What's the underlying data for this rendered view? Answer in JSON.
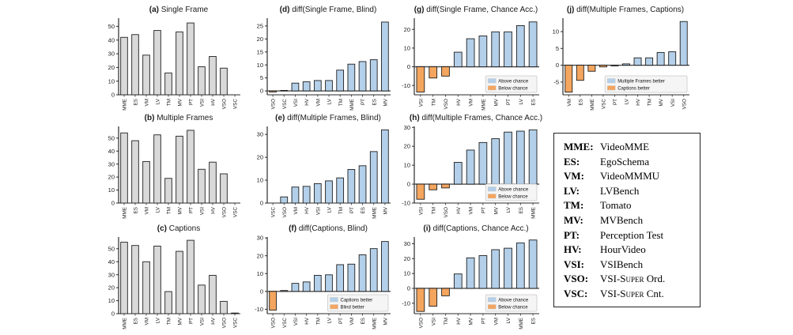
{
  "figure_name": "benchmark-diff-bar-charts",
  "colors": {
    "gray": "#d9d9d9",
    "blue": "#b3cfe9",
    "orange": "#f4a55e",
    "edge": "#1f1f1f",
    "spine": "#2a2a2a",
    "zero_line": "#4d4d4d",
    "legend_bg": "#f5f5f5",
    "legend_border": "#c9c9c9"
  },
  "chart_data": [
    {
      "id": "a",
      "type": "bar",
      "label": "(a)",
      "title": "Single Frame",
      "mono": true,
      "categories": [
        "MME",
        "ES",
        "VM",
        "LV",
        "TM",
        "MV",
        "PT",
        "VSI",
        "HV",
        "VSO",
        "VSC"
      ],
      "values": [
        42,
        44,
        29,
        47,
        16,
        46,
        52.5,
        20.5,
        28,
        19.5,
        0
      ],
      "yticks": [
        0,
        10,
        20,
        30,
        40,
        50
      ],
      "ylim": [
        0,
        56
      ],
      "legend": null
    },
    {
      "id": "b",
      "type": "bar",
      "label": "(b)",
      "title": "Multiple Frames",
      "mono": true,
      "categories": [
        "MME",
        "ES",
        "VM",
        "LV",
        "TM",
        "MV",
        "PT",
        "VSI",
        "HV",
        "VSO",
        "VSC"
      ],
      "values": [
        54,
        48,
        32,
        52.5,
        19,
        51.5,
        56,
        26,
        31.5,
        22.5,
        0
      ],
      "yticks": [
        0,
        10,
        20,
        30,
        40,
        50
      ],
      "ylim": [
        0,
        59
      ],
      "legend": null
    },
    {
      "id": "c",
      "type": "bar",
      "label": "(c)",
      "title": "Captions",
      "mono": true,
      "categories": [
        "MME",
        "ES",
        "VM",
        "LV",
        "TM",
        "MV",
        "PT",
        "VSI",
        "HV",
        "VSO",
        "VSC"
      ],
      "values": [
        55,
        52.5,
        40,
        52,
        17,
        48,
        56.5,
        22,
        29.5,
        9.5,
        0.5
      ],
      "yticks": [
        0,
        10,
        20,
        30,
        40,
        50
      ],
      "ylim": [
        0,
        59
      ],
      "legend": null
    },
    {
      "id": "d",
      "type": "bar",
      "label": "(d)",
      "title": "diff(Single Frame, Blind)",
      "mono": false,
      "categories": [
        "VSO",
        "VSC",
        "VSI",
        "HV",
        "VM",
        "LV",
        "TM",
        "MME",
        "PT",
        "ES",
        "MV"
      ],
      "values": [
        -0.4,
        0.2,
        3,
        3.5,
        4,
        4,
        8,
        10.3,
        11.3,
        12,
        26.5
      ],
      "yticks": [
        0,
        5,
        10,
        15,
        20,
        25
      ],
      "ylim": [
        -1.5,
        28
      ],
      "legend": null
    },
    {
      "id": "e",
      "type": "bar",
      "label": "(e)",
      "title": "diff(Multiple Frames, Blind)",
      "mono": false,
      "categories": [
        "VSC",
        "VSO",
        "VM",
        "HV",
        "VSI",
        "LV",
        "TM",
        "PT",
        "ES",
        "MME",
        "MV"
      ],
      "values": [
        0,
        2.7,
        7,
        7.3,
        8.5,
        9.7,
        11,
        14.7,
        16.3,
        22.5,
        32
      ],
      "yticks": [
        0,
        10,
        20,
        30
      ],
      "ylim": [
        0,
        33.5
      ],
      "legend": null
    },
    {
      "id": "f",
      "type": "bar",
      "label": "(f)",
      "title": "diff(Captions, Blind)",
      "mono": false,
      "categories": [
        "VSO",
        "VSC",
        "VSI",
        "HV",
        "TM",
        "LV",
        "PT",
        "VM",
        "ES",
        "MME",
        "MV"
      ],
      "values": [
        -10.5,
        0.5,
        4.5,
        5.3,
        9,
        9.3,
        15,
        15.3,
        20.5,
        24,
        28
      ],
      "yticks": [
        -10,
        0,
        10,
        20,
        30
      ],
      "ylim": [
        -12.5,
        30.5
      ],
      "legend": {
        "items": [
          {
            "label": "Captions better",
            "color": "blue"
          },
          {
            "label": "Blind better",
            "color": "orange"
          }
        ]
      }
    },
    {
      "id": "g",
      "type": "bar",
      "label": "(g)",
      "title": "diff(Single Frame, Chance Acc.)",
      "mono": false,
      "categories": [
        "VSI",
        "TM",
        "VSO",
        "HV",
        "VM",
        "MME",
        "MV",
        "PT",
        "LV",
        "ES"
      ],
      "values": [
        -13.5,
        -6,
        -5,
        7.8,
        15,
        16.5,
        18.7,
        18.7,
        22,
        24
      ],
      "yticks": [
        -10,
        0,
        10,
        20
      ],
      "ylim": [
        -15,
        26
      ],
      "legend": {
        "items": [
          {
            "label": "Above chance",
            "color": "blue"
          },
          {
            "label": "Below chance",
            "color": "orange"
          }
        ]
      }
    },
    {
      "id": "h",
      "type": "bar",
      "label": "(h)",
      "title": "diff(Multiple Frames, Chance Acc.)",
      "mono": false,
      "categories": [
        "VSI",
        "TM",
        "VSO",
        "HV",
        "VM",
        "PT",
        "MV",
        "LV",
        "ES",
        "MME"
      ],
      "values": [
        -8,
        -3,
        -2,
        11.5,
        18,
        22,
        24,
        27.5,
        28,
        28.7
      ],
      "yticks": [
        -10,
        0,
        10,
        20,
        30
      ],
      "ylim": [
        -10,
        30.5
      ],
      "legend": {
        "items": [
          {
            "label": "Above chance",
            "color": "blue"
          },
          {
            "label": "Below chance",
            "color": "orange"
          }
        ]
      }
    },
    {
      "id": "i",
      "type": "bar",
      "label": "(i)",
      "title": "diff(Captions, Chance Acc.)",
      "mono": false,
      "categories": [
        "VSO",
        "VSI",
        "TM",
        "HV",
        "MV",
        "PT",
        "VM",
        "LV",
        "MME",
        "ES"
      ],
      "values": [
        -15.5,
        -12,
        -5,
        9.7,
        20.5,
        22,
        26,
        27,
        30.5,
        32.5
      ],
      "yticks": [
        -10,
        0,
        10,
        20,
        30
      ],
      "ylim": [
        -17,
        34.5
      ],
      "legend": {
        "items": [
          {
            "label": "Above chance",
            "color": "blue"
          },
          {
            "label": "Below chance",
            "color": "orange"
          }
        ]
      }
    },
    {
      "id": "j",
      "type": "bar",
      "label": "(j)",
      "title": "diff(Multiple Frames, Captions)",
      "mono": false,
      "categories": [
        "VM",
        "ES",
        "MME",
        "VSC",
        "PT",
        "LV",
        "HV",
        "TM",
        "MV",
        "VSI",
        "VSO"
      ],
      "values": [
        -8,
        -4.5,
        -1.8,
        -0.5,
        -0.2,
        0.4,
        2.2,
        2.2,
        3.8,
        4,
        13
      ],
      "yticks": [
        -5,
        0,
        5,
        10
      ],
      "ylim": [
        -8.8,
        14
      ],
      "legend": {
        "items": [
          {
            "label": "Multiple Frames better",
            "color": "blue"
          },
          {
            "label": "Captions better",
            "color": "orange"
          }
        ]
      }
    }
  ],
  "abbreviations": [
    {
      "term": "MME:",
      "sc": "",
      "rest": "VideoMME"
    },
    {
      "term": "ES:",
      "sc": "",
      "rest": "EgoSchema"
    },
    {
      "term": "VM:",
      "sc": "",
      "rest": "VideoMMMU"
    },
    {
      "term": "LV:",
      "sc": "",
      "rest": "LVBench"
    },
    {
      "term": "TM:",
      "sc": "",
      "rest": "Tomato"
    },
    {
      "term": "MV:",
      "sc": "",
      "rest": "MVBench"
    },
    {
      "term": "PT:",
      "sc": "",
      "rest": "Perception Test"
    },
    {
      "term": "HV:",
      "sc": "",
      "rest": "HourVideo"
    },
    {
      "term": "VSI:",
      "sc": "",
      "rest": "VSIBench"
    },
    {
      "term": "VSO:",
      "sc": "VSI-Super",
      "rest": " Ord."
    },
    {
      "term": "VSC:",
      "sc": "VSI-Super",
      "rest": " Cnt."
    }
  ]
}
